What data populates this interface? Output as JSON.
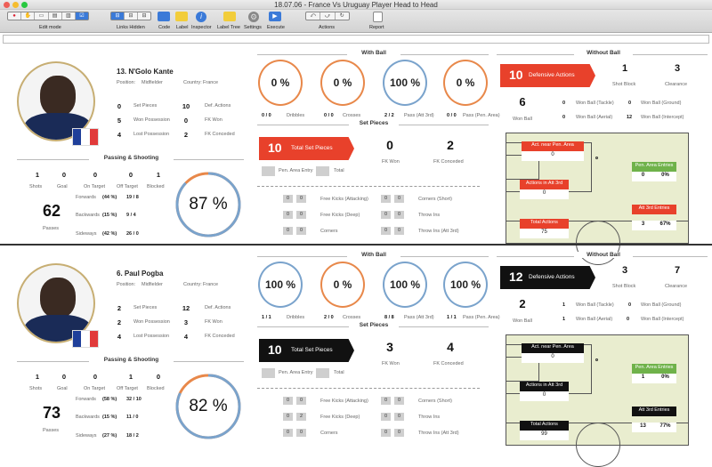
{
  "window": {
    "title": "18.07.06 - France Vs Uruguay Player Head to Head"
  },
  "toolbar": {
    "edit_mode": "Edit mode",
    "links_hidden": "Links Hidden",
    "code": "Code",
    "label": "Label",
    "inspector": "Inspector",
    "label_tree": "Label Tree",
    "settings": "Settings",
    "execute": "Execute",
    "actions": "Actions",
    "report": "Report"
  },
  "colors": {
    "red": "#e8412b",
    "black": "#111111",
    "orange_ring": "#e8884a",
    "blue_ring": "#7aa3cc",
    "green": "#6fb24a"
  },
  "headers": {
    "with_ball": "With Ball",
    "without_ball": "Without Ball",
    "set_pieces": "Set Pieces",
    "passing_shooting": "Passing & Shooting"
  },
  "labels": {
    "position": "Position:",
    "country": "Country:",
    "set_pieces": "Set Pieces",
    "won_possession": "Won Possession",
    "lost_possession": "Lost Possession",
    "def_actions": "Def. Actions",
    "fk_won": "FK Won",
    "fk_conceded": "FK Conceded",
    "shots": "Shots",
    "goal": "Goal",
    "on_target": "On Target",
    "off_target": "Off Target",
    "blocked": "Blocked",
    "passes": "Passes",
    "forwards": "Forwards",
    "backwards": "Backwards",
    "sideways": "Sideways",
    "dribbles": "Dribbles",
    "crosses": "Crosses",
    "pass_att3rd": "Pass (Att 3rd)",
    "pass_pen": "Pass (Pen. Area)",
    "total_set_pieces": "Total Set Pieces",
    "set_fk_won": "FK Won",
    "set_fk_conceded": "FK Conceded",
    "pen_area_entry": "Pen. Area Entry",
    "total": "Total",
    "fk_attacking": "Free Kicks (Attacking)",
    "fk_deep": "Free Kicks (Deep)",
    "corners": "Corners",
    "corners_short": "Corners (Short)",
    "throw_ins": "Throw Ins",
    "throw_ins_att3rd": "Throw Ins (Att 3rd)",
    "defensive_actions": "Defensive Actions",
    "shot_block": "Shot Block",
    "clearance": "Clearance",
    "won_ball": "Won Ball",
    "won_ball_tackle": "Won Ball (Tackle)",
    "won_ball_aerial": "Won Ball (Aerial)",
    "won_ball_ground": "Won Ball (Ground)",
    "won_ball_intercept": "Won Ball (Intercept)",
    "act_near_pen": "Act. near Pen. Area",
    "actions_att3rd": "Actions in Att 3rd",
    "total_actions": "Total Actions",
    "pen_area_entries": "Pen. Area Entries",
    "att3rd_entries": "Att 3rd Entries"
  },
  "players": [
    {
      "name": "13. N'Golo Kante",
      "position": "Midfielder",
      "country": "France",
      "set_pieces": "0",
      "won_possession": "5",
      "lost_possession": "4",
      "def_actions": "10",
      "fk_won": "0",
      "fk_conceded": "2",
      "shots": "1",
      "goal": "0",
      "on_target": "0",
      "off_target": "0",
      "blocked": "1",
      "passes": "62",
      "fwd_pct": "(44 %)",
      "fwd": "19 / 8",
      "bwd_pct": "(15 %)",
      "bwd": "9 / 4",
      "side_pct": "(42 %)",
      "side": "26 / 0",
      "pass_pct": "87 %",
      "pass_fraction": 0.87,
      "wb": [
        {
          "pct": "0 %",
          "count": "0 / 0",
          "frac": 0,
          "ring": "orange"
        },
        {
          "pct": "0 %",
          "count": "0 / 0",
          "frac": 0,
          "ring": "orange"
        },
        {
          "pct": "100 %",
          "count": "2 / 2",
          "frac": 1,
          "ring": "blue"
        },
        {
          "pct": "0 %",
          "count": "0 / 0",
          "frac": 0,
          "ring": "orange"
        }
      ],
      "total_set_pieces": "10",
      "sp_fk_won": "0",
      "sp_fk_conceded": "2",
      "sp_rows": [
        [
          "0",
          "0",
          "0",
          "0"
        ],
        [
          "0",
          "0",
          "0",
          "0"
        ],
        [
          "0",
          "0",
          "0",
          "0"
        ]
      ],
      "defensive_actions": "10",
      "shot_block": "1",
      "clearance": "3",
      "won_ball": "6",
      "won_tackle": "0",
      "won_aerial": "0",
      "won_ground": "0",
      "won_intercept": "12",
      "act_near_pen": "0",
      "actions_att3rd": "0",
      "total_actions": "75",
      "pen_entries_a": "0",
      "pen_entries_b": "0%",
      "att3rd_a": "3",
      "att3rd_b": "67%"
    },
    {
      "name": "6. Paul Pogba",
      "position": "Midfielder",
      "country": "France",
      "set_pieces": "2",
      "won_possession": "2",
      "lost_possession": "4",
      "def_actions": "12",
      "fk_won": "3",
      "fk_conceded": "4",
      "shots": "1",
      "goal": "0",
      "on_target": "0",
      "off_target": "1",
      "blocked": "0",
      "passes": "73",
      "fwd_pct": "(58 %)",
      "fwd": "32 / 10",
      "bwd_pct": "(15 %)",
      "bwd": "11 / 0",
      "side_pct": "(27 %)",
      "side": "18 / 2",
      "pass_pct": "82 %",
      "pass_fraction": 0.82,
      "wb": [
        {
          "pct": "100 %",
          "count": "1 / 1",
          "frac": 1,
          "ring": "blue"
        },
        {
          "pct": "0 %",
          "count": "2 / 0",
          "frac": 0,
          "ring": "orange"
        },
        {
          "pct": "100 %",
          "count": "8 / 8",
          "frac": 1,
          "ring": "blue"
        },
        {
          "pct": "100 %",
          "count": "1 / 1",
          "frac": 1,
          "ring": "blue"
        }
      ],
      "total_set_pieces": "10",
      "sp_fk_won": "3",
      "sp_fk_conceded": "4",
      "sp_rows": [
        [
          "0",
          "0",
          "0",
          "0"
        ],
        [
          "0",
          "2",
          "0",
          "0"
        ],
        [
          "0",
          "0",
          "0",
          "0"
        ]
      ],
      "defensive_actions": "12",
      "shot_block": "3",
      "clearance": "7",
      "won_ball": "2",
      "won_tackle": "1",
      "won_aerial": "1",
      "won_ground": "0",
      "won_intercept": "0",
      "act_near_pen": "0",
      "actions_att3rd": "0",
      "total_actions": "99",
      "pen_entries_a": "1",
      "pen_entries_b": "0%",
      "att3rd_a": "13",
      "att3rd_b": "77%"
    }
  ]
}
